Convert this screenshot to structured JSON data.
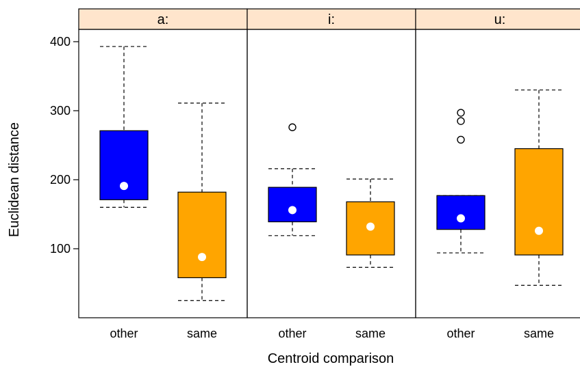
{
  "chart_data": {
    "type": "boxplot",
    "xlabel": "Centroid comparison",
    "ylabel": "Euclidean distance",
    "ylim": [
      0,
      400
    ],
    "yticks": [
      100,
      200,
      300,
      400
    ],
    "categories": [
      "other",
      "same"
    ],
    "colors": {
      "other": "#0000ff",
      "same": "#ffa500",
      "strip": "#ffe5cc",
      "median_dot": "#ffffff"
    },
    "panels": [
      {
        "label": "a:",
        "boxes": [
          {
            "category": "other",
            "whisker_low": 160,
            "q1": 171,
            "median": 191,
            "q3": 271,
            "whisker_high": 393,
            "outliers": []
          },
          {
            "category": "same",
            "whisker_low": 25,
            "q1": 58,
            "median": 88,
            "q3": 182,
            "whisker_high": 311,
            "outliers": []
          }
        ]
      },
      {
        "label": "i:",
        "boxes": [
          {
            "category": "other",
            "whisker_low": 119,
            "q1": 139,
            "median": 156,
            "q3": 189,
            "whisker_high": 216,
            "outliers": [
              276
            ]
          },
          {
            "category": "same",
            "whisker_low": 73,
            "q1": 91,
            "median": 132,
            "q3": 168,
            "whisker_high": 201,
            "outliers": []
          }
        ]
      },
      {
        "label": "u:",
        "boxes": [
          {
            "category": "other",
            "whisker_low": 94,
            "q1": 128,
            "median": 144,
            "q3": 177,
            "whisker_high": 177,
            "outliers": [
              258,
              285,
              297
            ]
          },
          {
            "category": "same",
            "whisker_low": 47,
            "q1": 91,
            "median": 126,
            "q3": 245,
            "whisker_high": 330,
            "outliers": []
          }
        ]
      }
    ]
  }
}
